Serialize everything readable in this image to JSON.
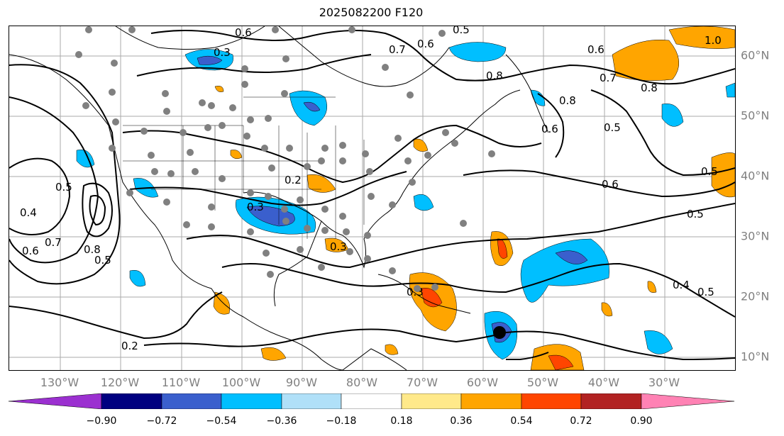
{
  "title": "2025082200 F120",
  "lon_labels": [
    "130°W",
    "120°W",
    "110°W",
    "100°W",
    "90°W",
    "80°W",
    "70°W",
    "60°W",
    "50°W",
    "40°W",
    "30°W"
  ],
  "lat_labels": [
    "60°N",
    "50°N",
    "40°N",
    "30°N",
    "20°N",
    "10°N"
  ],
  "colorbar": {
    "ticks": [
      "−0.90",
      "−0.72",
      "−0.54",
      "−0.36",
      "−0.18",
      "0.18",
      "0.36",
      "0.54",
      "0.72",
      "0.90"
    ],
    "colors": [
      "#9b30d0",
      "#000080",
      "#3a5fcd",
      "#00bfff",
      "#b0e0f8",
      "#ffffff",
      "#ffe98a",
      "#ffa500",
      "#ff4500",
      "#b22222",
      "#ff82b4"
    ]
  },
  "contour_labels": [
    "0.6",
    "0.3",
    "0.7",
    "0.6",
    "0.5",
    "0.8",
    "0.8",
    "0.6",
    "1.0",
    "0.7",
    "0.8",
    "0.5",
    "0.6",
    "0.5",
    "0.6",
    "0.5",
    "0.4",
    "0.5",
    "0.7",
    "0.8",
    "0.5",
    "0.6",
    "0.2",
    "0.3",
    "0.3",
    "0.3",
    "0.4",
    "0.5",
    "0.2"
  ],
  "markers": {
    "storm": "black-dot",
    "stations": "gray-dots"
  }
}
